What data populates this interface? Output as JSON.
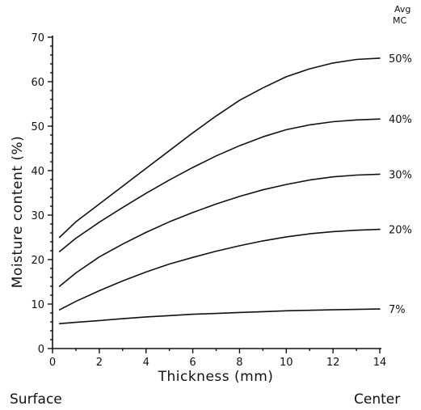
{
  "chart_data": {
    "type": "line",
    "xlabel": "Thickness (mm)",
    "ylabel": "Moisture content (%)",
    "xlim": [
      0,
      14
    ],
    "ylim": [
      0,
      70
    ],
    "x_ticks": [
      0,
      2,
      4,
      6,
      8,
      10,
      12,
      14
    ],
    "y_ticks": [
      0,
      10,
      20,
      30,
      40,
      50,
      60,
      70
    ],
    "grid": false,
    "legend_title": [
      "Avg",
      "MC"
    ],
    "x_endpoint_labels": {
      "left": "Surface",
      "right": "Center"
    },
    "x": [
      0.3,
      1,
      2,
      3,
      4,
      5,
      6,
      7,
      8,
      9,
      10,
      11,
      12,
      13,
      14
    ],
    "series": [
      {
        "name": "50%",
        "values": [
          25,
          28.5,
          32.5,
          36.5,
          40.5,
          44.5,
          48.5,
          52.3,
          55.8,
          58.6,
          61.1,
          62.9,
          64.2,
          65.0,
          65.3
        ]
      },
      {
        "name": "40%",
        "values": [
          21.8,
          24.8,
          28.4,
          31.7,
          34.9,
          37.9,
          40.7,
          43.3,
          45.6,
          47.6,
          49.2,
          50.3,
          51.0,
          51.4,
          51.6
        ]
      },
      {
        "name": "30%",
        "values": [
          14,
          17,
          20.6,
          23.5,
          26.1,
          28.5,
          30.6,
          32.5,
          34.2,
          35.7,
          36.9,
          37.9,
          38.6,
          39.0,
          39.2
        ]
      },
      {
        "name": "20%",
        "values": [
          8.7,
          10.6,
          13,
          15.2,
          17.2,
          19,
          20.5,
          21.9,
          23.1,
          24.2,
          25.1,
          25.8,
          26.3,
          26.6,
          26.8
        ]
      },
      {
        "name": "7%",
        "values": [
          5.6,
          5.9,
          6.3,
          6.7,
          7.1,
          7.4,
          7.7,
          7.9,
          8.1,
          8.3,
          8.5,
          8.6,
          8.7,
          8.8,
          8.9
        ]
      }
    ]
  }
}
